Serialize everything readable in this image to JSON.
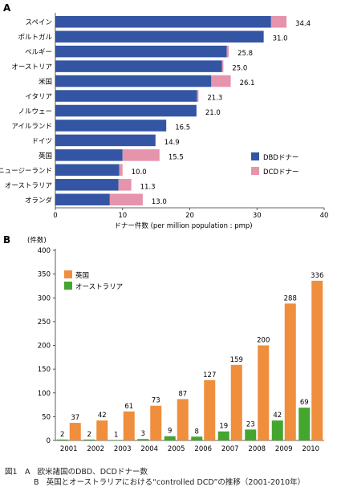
{
  "chart_data": [
    {
      "panel_label": "A",
      "type": "bar",
      "orientation": "horizontal",
      "stacked": true,
      "categories": [
        "スペイン",
        "ポルトガル",
        "ベルギー",
        "オーストリア",
        "米国",
        "イタリア",
        "ノルウェー",
        "アイルランド",
        "ドイツ",
        "英国",
        "ニュージーランド",
        "オーストラリア",
        "オランダ"
      ],
      "series": [
        {
          "name": "DBDドナー",
          "color": "#3355a4",
          "values": [
            32.1,
            31.0,
            25.5,
            24.8,
            23.2,
            21.1,
            21.0,
            16.5,
            14.9,
            10.0,
            9.5,
            9.4,
            8.1
          ]
        },
        {
          "name": "DCDドナー",
          "color": "#e693ac",
          "values": [
            2.3,
            0,
            0.3,
            0.2,
            2.9,
            0.2,
            0,
            0,
            0,
            5.5,
            0.5,
            1.9,
            4.9
          ]
        }
      ],
      "totals": [
        "34.4",
        "31.0",
        "25.8",
        "25.0",
        "26.1",
        "21.3",
        "21.0",
        "16.5",
        "14.9",
        "15.5",
        "10.0",
        "11.3",
        "13.0"
      ],
      "xlabel": "ドナー件数 (per million population : pmp)",
      "xlim": [
        0,
        40
      ],
      "xticks": [
        "0",
        "10",
        "20",
        "30",
        "40"
      ],
      "legend_position": "bottom-right"
    },
    {
      "panel_label": "B",
      "type": "bar",
      "orientation": "vertical",
      "categories": [
        "2001",
        "2002",
        "2003",
        "2004",
        "2005",
        "2006",
        "2007",
        "2008",
        "2009",
        "2010"
      ],
      "series": [
        {
          "name": "英国",
          "color": "#ef8e3d",
          "values": [
            37,
            42,
            61,
            73,
            87,
            127,
            159,
            200,
            288,
            336
          ],
          "labels": [
            "37",
            "42",
            "61",
            "73",
            "87",
            "127",
            "159",
            "200",
            "288",
            "336"
          ]
        },
        {
          "name": "オーストラリア",
          "color": "#44a52f",
          "values": [
            2,
            2,
            1,
            3,
            9,
            8,
            19,
            23,
            42,
            69
          ],
          "labels": [
            "2",
            "2",
            "1",
            "3",
            "9",
            "8",
            "19",
            "23",
            "42",
            "69"
          ]
        }
      ],
      "ylabel": "(件数)",
      "ylim": [
        0,
        400
      ],
      "yticks": [
        "0",
        "50",
        "100",
        "150",
        "200",
        "250",
        "300",
        "350",
        "400"
      ],
      "legend_position": "top-left"
    }
  ],
  "caption": {
    "line1_prefix": "図1　A",
    "line1_text": "欧米諸国のDBD、DCDドナー数",
    "line2_prefix": "B",
    "line2_text": "英国とオーストラリアにおける“controlled DCD”の推移（2001-2010年）"
  }
}
